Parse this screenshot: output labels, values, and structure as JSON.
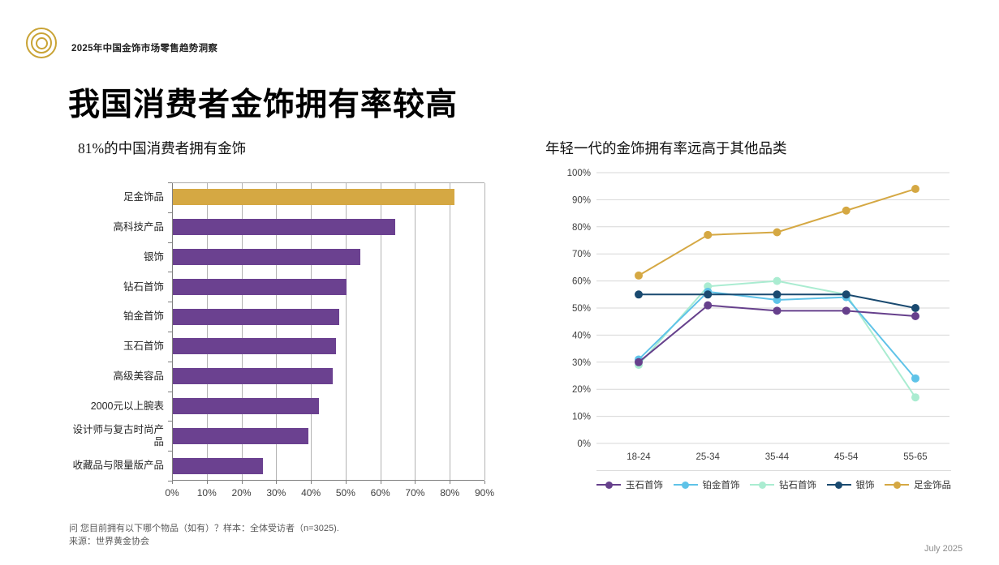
{
  "header": {
    "logo": "concentric-circles-gold-logo",
    "text": "2025年中国金饰市场零售趋势洞察"
  },
  "title": "我国消费者金饰拥有率较高",
  "colors": {
    "gold": "#D5A843",
    "purple": "#6B4190",
    "line_purple": "#66408C",
    "light_blue": "#5FC3E8",
    "mint_green": "#AAECD1",
    "navy": "#1A4A70",
    "grid_gray": "#B3B3B3",
    "light_grid_gray": "#D7D7D7"
  },
  "chart_data": [
    {
      "type": "bar",
      "orientation": "horizontal",
      "title": "81%的中国消费者拥有金饰",
      "categories": [
        "足金饰品",
        "高科技产品",
        "银饰",
        "钻石首饰",
        "铂金首饰",
        "玉石首饰",
        "高级美容品",
        "2000元以上腕表",
        "设计师与复古时尚产品",
        "收藏品与限量版产品"
      ],
      "values": [
        81,
        64,
        54,
        50,
        48,
        47,
        46,
        42,
        39,
        26
      ],
      "bar_colors": [
        "#D5A843",
        "#6B4190",
        "#6B4190",
        "#6B4190",
        "#6B4190",
        "#6B4190",
        "#6B4190",
        "#6B4190",
        "#6B4190",
        "#6B4190"
      ],
      "xlim": [
        0,
        90
      ],
      "x_tick_labels": [
        "0%",
        "10%",
        "20%",
        "30%",
        "40%",
        "50%",
        "60%",
        "70%",
        "80%",
        "90%"
      ],
      "xlabel": "",
      "ylabel": "",
      "grid": true
    },
    {
      "type": "line",
      "title": "年轻一代的金饰拥有率远高于其他品类",
      "categories": [
        "18-24",
        "25-34",
        "35-44",
        "45-54",
        "55-65"
      ],
      "series": [
        {
          "name": "玉石首饰",
          "color": "#66408C",
          "values": [
            30,
            51,
            49,
            49,
            47
          ]
        },
        {
          "name": "铂金首饰",
          "color": "#5FC3E8",
          "values": [
            31,
            56,
            53,
            54,
            24
          ]
        },
        {
          "name": "钻石首饰",
          "color": "#AAECD1",
          "values": [
            29,
            58,
            60,
            55,
            17
          ]
        },
        {
          "name": "银饰",
          "color": "#1A4A70",
          "values": [
            55,
            55,
            55,
            55,
            50
          ]
        },
        {
          "name": "足金饰品",
          "color": "#D5A843",
          "values": [
            62,
            77,
            78,
            86,
            94
          ]
        }
      ],
      "draw_order": [
        2,
        1,
        0,
        3,
        4
      ],
      "ylim": [
        0,
        100
      ],
      "y_tick_labels": [
        "0%",
        "10%",
        "20%",
        "30%",
        "40%",
        "50%",
        "60%",
        "70%",
        "80%",
        "90%",
        "100%"
      ],
      "legend_position": "bottom",
      "grid": true
    }
  ],
  "footer": {
    "question": "问 您目前拥有以下哪个物品（如有）？样本：全体受访者（n=3025).",
    "source": "来源：世界黄金协会",
    "date": "July 2025"
  }
}
